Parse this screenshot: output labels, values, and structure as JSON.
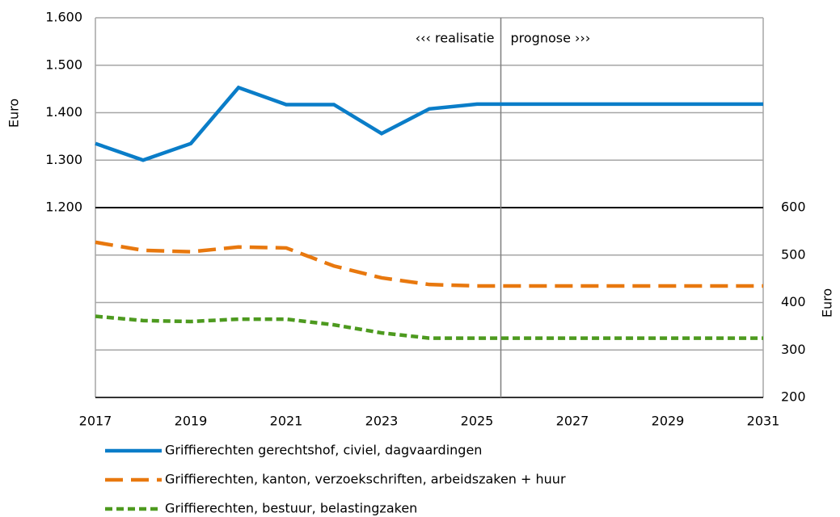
{
  "chart_data": {
    "type": "line",
    "x": [
      2017,
      2018,
      2019,
      2020,
      2021,
      2022,
      2023,
      2024,
      2025,
      2026,
      2027,
      2028,
      2029,
      2030,
      2031
    ],
    "xlim": [
      2017,
      2031
    ],
    "xticks": [
      2017,
      2019,
      2021,
      2023,
      2025,
      2027,
      2029,
      2031
    ],
    "ylim": [
      800,
      1600
    ],
    "yticks": [
      {
        "value": 1200,
        "label": "1.200"
      },
      {
        "value": 1300,
        "label": "1.300"
      },
      {
        "value": 1400,
        "label": "1.400"
      },
      {
        "value": 1500,
        "label": "1.500"
      },
      {
        "value": 1600,
        "label": "1.600"
      }
    ],
    "y2lim": [
      200,
      1000
    ],
    "y2ticks": [
      200,
      300,
      400,
      500,
      600
    ],
    "ylabel": "Euro",
    "y2label": "Euro",
    "grid": true,
    "separator_y": 1200,
    "vline_x": 2025.5,
    "annotations": [
      "‹‹‹ realisatie",
      "prognose ›››"
    ],
    "series": [
      {
        "name": "Griffierechten gerechtshof, civiel, dagvaardingen",
        "color": "#0a7dc8",
        "dash": "solid",
        "axis": "y",
        "values": [
          1335,
          1300,
          1335,
          1453,
          1417,
          1417,
          1356,
          1408,
          1418,
          1418,
          1418,
          1418,
          1418,
          1418,
          1418
        ]
      },
      {
        "name": "Griffierechten, kanton, verzoekschriften, arbeidszaken + huur",
        "color": "#e8780e",
        "dash": "dashed",
        "axis": "y2",
        "values": [
          527,
          510,
          507,
          517,
          515,
          477,
          452,
          438,
          435,
          435,
          435,
          435,
          435,
          435,
          435
        ]
      },
      {
        "name": "Griffierechten, bestuur, belastingzaken",
        "color": "#4d9a1f",
        "dash": "dotted",
        "axis": "y2",
        "values": [
          371,
          362,
          360,
          365,
          365,
          353,
          336,
          325,
          325,
          325,
          325,
          325,
          325,
          325,
          325
        ]
      }
    ]
  }
}
